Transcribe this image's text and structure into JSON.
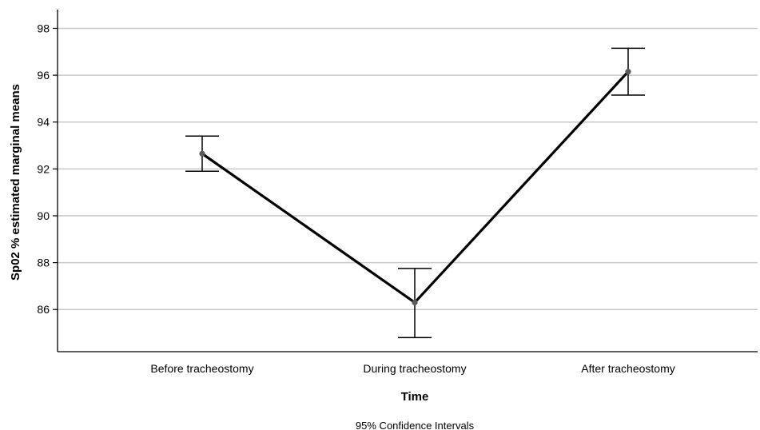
{
  "chart_data": {
    "type": "line",
    "categories": [
      "Before tracheostomy",
      "During tracheostomy",
      "After tracheostomy"
    ],
    "series": [
      {
        "values": [
          92.65,
          86.3,
          96.15
        ],
        "ci_lower": [
          91.9,
          84.8,
          95.15
        ],
        "ci_upper": [
          93.4,
          87.75,
          97.15
        ]
      }
    ],
    "xlabel": "Time",
    "ylabel": "Sp02 % estimated marginal means",
    "yticks": [
      86,
      88,
      90,
      92,
      94,
      96,
      98
    ],
    "ylim": [
      84.2,
      98.8
    ],
    "grid": "horizontal",
    "footnote": "95% Confidence Intervals",
    "colors": {
      "line": "#000000",
      "grid": "#c8c8c8",
      "marker": "#5a5a5a"
    }
  }
}
